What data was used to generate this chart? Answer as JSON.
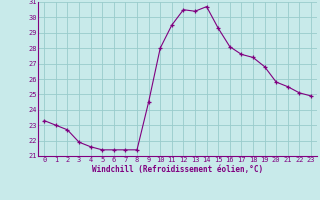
{
  "x": [
    0,
    1,
    2,
    3,
    4,
    5,
    6,
    7,
    8,
    9,
    10,
    11,
    12,
    13,
    14,
    15,
    16,
    17,
    18,
    19,
    20,
    21,
    22,
    23
  ],
  "y": [
    23.3,
    23.0,
    22.7,
    21.9,
    21.6,
    21.4,
    21.4,
    21.4,
    21.4,
    24.5,
    28.0,
    29.5,
    30.5,
    30.4,
    30.7,
    29.3,
    28.1,
    27.6,
    27.4,
    26.8,
    25.8,
    25.5,
    25.1,
    24.9
  ],
  "line_color": "#800080",
  "marker": "+",
  "marker_color": "#800080",
  "bg_color": "#c8eaea",
  "grid_color": "#99cccc",
  "xlabel": "Windchill (Refroidissement éolien,°C)",
  "xlim": [
    -0.5,
    23.5
  ],
  "ylim": [
    21,
    31
  ],
  "yticks": [
    21,
    22,
    23,
    24,
    25,
    26,
    27,
    28,
    29,
    30,
    31
  ],
  "xticks": [
    0,
    1,
    2,
    3,
    4,
    5,
    6,
    7,
    8,
    9,
    10,
    11,
    12,
    13,
    14,
    15,
    16,
    17,
    18,
    19,
    20,
    21,
    22,
    23
  ]
}
